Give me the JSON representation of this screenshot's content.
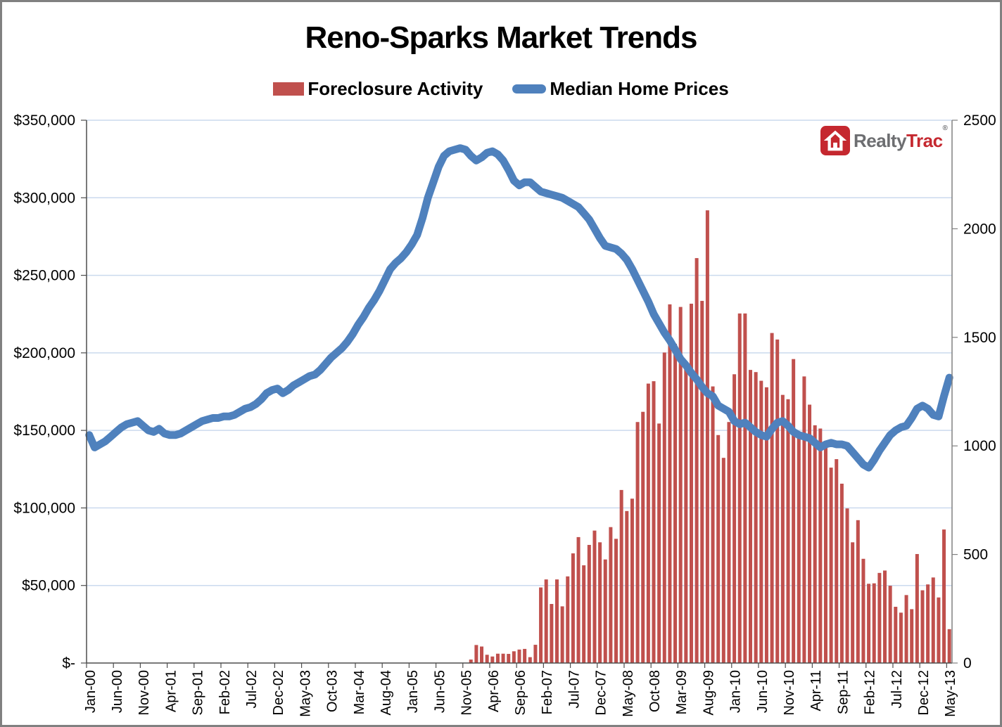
{
  "title": "Reno-Sparks Market Trends",
  "legend": [
    {
      "label": "Foreclosure Activity",
      "type": "bar",
      "color": "#C0504D"
    },
    {
      "label": "Median Home Prices",
      "type": "line",
      "color": "#4F81BD"
    }
  ],
  "logo": {
    "realty": "Realty",
    "trac": "Trac",
    "reg": "®",
    "red": "#C5282F",
    "gray": "#6D6E71"
  },
  "chart_data": {
    "type": "bar+line",
    "title": "Reno-Sparks Market Trends",
    "months_start": "Jan-00",
    "months_end": "May-13",
    "months_count": 161,
    "x_label_interval": 5,
    "x_labels": [
      "Jan-00",
      "Jun-00",
      "Nov-00",
      "Apr-01",
      "Sep-01",
      "Feb-02",
      "Jul-02",
      "Dec-02",
      "May-03",
      "Oct-03",
      "Mar-04",
      "Aug-04",
      "Jan-05",
      "Jun-05",
      "Nov-05",
      "Apr-06",
      "Sep-06",
      "Feb-07",
      "Jul-07",
      "Dec-07",
      "May-08",
      "Oct-08",
      "Mar-09",
      "Aug-09",
      "Jan-10",
      "Jun-10",
      "Nov-10",
      "Apr-11",
      "Sep-11",
      "Feb-12",
      "Jul-12",
      "Dec-12",
      "May-13"
    ],
    "left_axis": {
      "ticks": [
        "$350,000",
        "$300,000",
        "$250,000",
        "$200,000",
        "$150,000",
        "$100,000",
        "$50,000",
        "$-"
      ],
      "min": 0,
      "max": 350000,
      "series": "Median Home Prices"
    },
    "right_axis": {
      "ticks": [
        "2500",
        "2000",
        "1500",
        "1000",
        "500",
        "0"
      ],
      "min": 0,
      "max": 2500,
      "series": "Foreclosure Activity"
    },
    "gridline_color": "#CBDAEE",
    "legend_position": "top",
    "series": [
      {
        "name": "Foreclosure Activity",
        "type": "bar",
        "axis": "right",
        "color": "#C0504D",
        "values": [
          0,
          0,
          0,
          0,
          0,
          0,
          0,
          0,
          0,
          0,
          0,
          0,
          0,
          0,
          0,
          0,
          0,
          0,
          0,
          0,
          0,
          0,
          0,
          0,
          0,
          0,
          0,
          0,
          0,
          0,
          0,
          0,
          0,
          0,
          0,
          0,
          0,
          0,
          0,
          0,
          0,
          0,
          0,
          0,
          0,
          0,
          0,
          0,
          0,
          0,
          0,
          0,
          0,
          0,
          0,
          0,
          0,
          0,
          0,
          0,
          0,
          0,
          0,
          0,
          0,
          0,
          0,
          0,
          0,
          0,
          0,
          16,
          83,
          76,
          38,
          30,
          43,
          43,
          42,
          54,
          62,
          65,
          27,
          84,
          348,
          385,
          272,
          385,
          261,
          399,
          505,
          580,
          450,
          544,
          610,
          556,
          477,
          626,
          572,
          797,
          700,
          757,
          1110,
          1157,
          1287,
          1298,
          1103,
          1430,
          1652,
          1470,
          1640,
          1390,
          1655,
          1865,
          1668,
          2085,
          1274,
          1050,
          945,
          1110,
          1330,
          1610,
          1610,
          1350,
          1340,
          1300,
          1270,
          1520,
          1490,
          1235,
          1215,
          1400,
          1035,
          1320,
          1190,
          1095,
          1080,
          1000,
          900,
          939,
          826,
          712,
          556,
          658,
          480,
          365,
          367,
          415,
          426,
          356,
          259,
          232,
          313,
          248,
          502,
          335,
          362,
          394,
          302,
          615,
          156
        ]
      },
      {
        "name": "Median Home Prices",
        "type": "line",
        "axis": "left",
        "color": "#4F81BD",
        "units": "USD thousands",
        "values_usd_thousands": [
          147,
          139,
          141,
          143,
          146,
          149,
          152,
          154,
          155,
          156,
          153,
          150,
          149,
          151,
          148,
          147,
          147,
          148,
          150,
          152,
          154,
          156,
          157,
          158,
          158,
          159,
          159,
          160,
          162,
          164,
          165,
          167,
          170,
          174,
          176,
          177,
          174,
          176,
          179,
          181,
          183,
          185,
          186,
          189,
          193,
          197,
          200,
          203,
          207,
          212,
          218,
          223,
          229,
          234,
          240,
          247,
          254,
          258,
          261,
          265,
          270,
          276,
          287,
          300,
          310,
          320,
          327,
          330,
          331,
          332,
          331,
          327,
          324,
          326,
          329,
          330,
          328,
          324,
          318,
          311,
          308,
          310,
          310,
          307,
          304,
          303,
          302,
          301,
          300,
          298,
          296,
          294,
          290,
          286,
          280,
          274,
          269,
          268,
          267,
          264,
          260,
          254,
          247,
          240,
          233,
          225,
          219,
          213,
          208,
          202,
          196,
          192,
          187,
          183,
          178,
          174,
          172,
          166,
          164,
          162,
          156,
          154,
          155,
          152,
          149,
          147,
          146,
          151,
          155,
          156,
          153,
          149,
          147,
          146,
          145,
          142,
          139,
          141,
          142,
          141,
          141,
          140,
          136,
          132,
          128,
          126,
          131,
          137,
          142,
          147,
          150,
          152,
          153,
          158,
          164,
          166,
          164,
          160,
          159,
          172,
          184
        ]
      }
    ]
  }
}
